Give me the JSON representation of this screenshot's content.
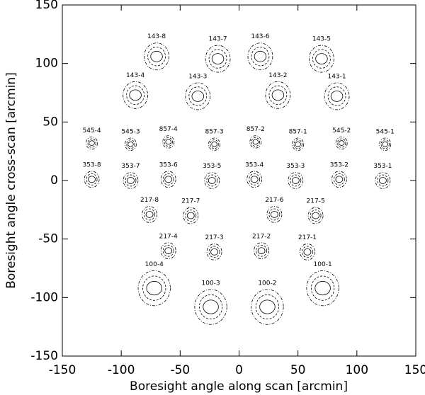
{
  "chart_data": {
    "type": "scatter",
    "xlabel": "Boresight angle along scan [arcmin]",
    "ylabel": "Boresight angle cross-scan [arcmin]",
    "xlim": [
      -150,
      150
    ],
    "ylim": [
      -150,
      150
    ],
    "xticks": [
      -150,
      -100,
      -50,
      0,
      50,
      100,
      150
    ],
    "yticks": [
      -150,
      -100,
      -50,
      0,
      50,
      100,
      150
    ],
    "color": "#000000",
    "labels": [
      "143-8",
      "143-7",
      "143-6",
      "143-5",
      "143-4",
      "143-3",
      "143-2",
      "143-1",
      "545-4",
      "545-3",
      "857-4",
      "857-3",
      "857-2",
      "857-1",
      "545-2",
      "545-1",
      "353-8",
      "353-7",
      "353-6",
      "353-5",
      "353-4",
      "353-3",
      "353-2",
      "353-1",
      "217-8",
      "217-7",
      "217-6",
      "217-5",
      "217-4",
      "217-3",
      "217-2",
      "217-1",
      "100-4",
      "100-3",
      "100-2",
      "100-1"
    ],
    "x": [
      -70,
      -18,
      18,
      70,
      -88,
      -35,
      33,
      83,
      -125,
      -92,
      -60,
      -21,
      14,
      50,
      87,
      124,
      -125,
      -92,
      -60,
      -23,
      13,
      48,
      85,
      122,
      -76,
      -41,
      30,
      65,
      -60,
      -21,
      19,
      58,
      -72,
      -24,
      24,
      71
    ],
    "y": [
      106,
      104,
      106,
      104,
      73,
      72,
      73,
      72,
      32,
      31,
      33,
      31,
      33,
      31,
      32,
      31,
      1,
      0,
      1,
      0,
      1,
      0,
      1,
      0,
      -29,
      -30,
      -29,
      -30,
      -60,
      -61,
      -60,
      -61,
      -92,
      -108,
      -108,
      -92
    ],
    "sizes": [
      5,
      5,
      5,
      5,
      5,
      5,
      5,
      5,
      2.3,
      2.3,
      2.3,
      2.3,
      2.3,
      2.3,
      2.3,
      2.3,
      3,
      3,
      3,
      3,
      3,
      3,
      3,
      3,
      3,
      3,
      3,
      3,
      3,
      3,
      3,
      3,
      6.5,
      6.5,
      6.5,
      6.5
    ]
  }
}
